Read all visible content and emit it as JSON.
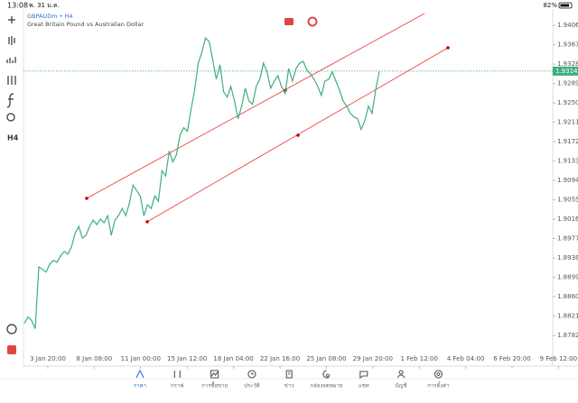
{
  "status_bar": {
    "time": "13:08",
    "date": "พ. 31 ม.ค.",
    "battery": "82%"
  },
  "symbol": {
    "name": "GBPAUDm • H4",
    "description": "Great Britain Pound vs Australian Dollar"
  },
  "toolbar": {
    "timeframe": "H4"
  },
  "chart_data": {
    "type": "line",
    "color": "#3fae7e",
    "values": [
      1.88065,
      1.88192,
      1.8812,
      1.87957,
      1.89203,
      1.89149,
      1.89095,
      1.89257,
      1.89329,
      1.89293,
      1.8942,
      1.8951,
      1.89456,
      1.896,
      1.89871,
      1.90015,
      1.89781,
      1.89835,
      1.90015,
      1.90142,
      1.90052,
      1.9016,
      1.90088,
      1.90232,
      1.89835,
      1.90142,
      1.90232,
      1.90377,
      1.90232,
      1.90485,
      1.90846,
      1.90738,
      1.90629,
      1.90232,
      1.90449,
      1.90377,
      1.90629,
      1.90521,
      1.91135,
      1.91027,
      1.91532,
      1.91315,
      1.9146,
      1.91857,
      1.92002,
      1.91929,
      1.92363,
      1.9276,
      1.93302,
      1.93518,
      1.93807,
      1.93735,
      1.93374,
      1.92977,
      1.93266,
      1.92724,
      1.92616,
      1.92832,
      1.92543,
      1.92182,
      1.92435,
      1.92796,
      1.92543,
      1.92471,
      1.92832,
      1.92977,
      1.93302,
      1.93121,
      1.92796,
      1.92941,
      1.93049,
      1.92832,
      1.92688,
      1.93193,
      1.92941,
      1.93193,
      1.93302,
      1.93338,
      1.93157,
      1.93085,
      1.92977,
      1.92832,
      1.92652,
      1.92941,
      1.92977,
      1.93121,
      1.92941,
      1.9276,
      1.92543,
      1.92435,
      1.92291,
      1.92218,
      1.92182,
      1.91966,
      1.92146,
      1.92435,
      1.92291,
      1.9276,
      1.9314
    ],
    "ylim": [
      1.8764,
      1.9439
    ],
    "yticks": [
      {
        "value": 1.9406,
        "label": "1.94060"
      },
      {
        "value": 1.9367,
        "label": "1.93670"
      },
      {
        "value": 1.9328,
        "label": "1.93280"
      },
      {
        "value": 1.9289,
        "label": "1.92890"
      },
      {
        "value": 1.925,
        "label": "1.92500"
      },
      {
        "value": 1.9211,
        "label": "1.92110"
      },
      {
        "value": 1.9172,
        "label": "1.91720"
      },
      {
        "value": 1.9133,
        "label": "1.91330"
      },
      {
        "value": 1.9094,
        "label": "1.90940"
      },
      {
        "value": 1.9055,
        "label": "1.90550"
      },
      {
        "value": 1.9016,
        "label": "1.90160"
      },
      {
        "value": 1.8977,
        "label": "1.89770"
      },
      {
        "value": 1.8938,
        "label": "1.89380"
      },
      {
        "value": 1.8899,
        "label": "1.88990"
      },
      {
        "value": 1.886,
        "label": "1.88600"
      },
      {
        "value": 1.8821,
        "label": "1.88210"
      },
      {
        "value": 1.8782,
        "label": "1.87820"
      }
    ],
    "current_price": {
      "value": 1.9314,
      "label": "1.93140"
    },
    "xticks": [
      "3 Jan 20:00",
      "8 Jan 08:00",
      "11 Jan 00:00",
      "15 Jan 12:00",
      "18 Jan 04:00",
      "22 Jan 16:00",
      "25 Jan 08:00",
      "29 Jan 20:00",
      "1 Feb 12:00",
      "4 Feb 04:00",
      "6 Feb 20:00",
      "9 Feb 12:00"
    ]
  },
  "nav": [
    "ราคา",
    "กราฟ",
    "การซื้อขาย",
    "ประวัติ",
    "ข่าว",
    "กล่องจดหมาย",
    "แชท",
    "บัญชี",
    "การตั้งค่า"
  ]
}
